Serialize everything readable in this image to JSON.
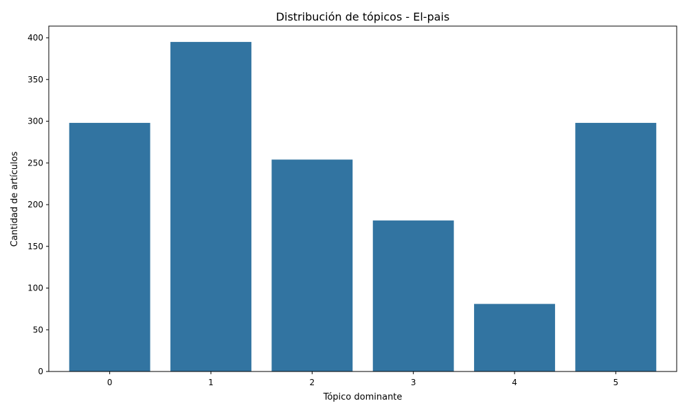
{
  "chart_data": {
    "type": "bar",
    "title": "Distribución de tópicos - El-pais",
    "xlabel": "Tópico dominante",
    "ylabel": "Cantidad de artículos",
    "categories": [
      "0",
      "1",
      "2",
      "3",
      "4",
      "5"
    ],
    "values": [
      298,
      395,
      254,
      181,
      81,
      298
    ],
    "ylim": [
      0,
      414
    ],
    "yticks": [
      0,
      50,
      100,
      150,
      200,
      250,
      300,
      350,
      400
    ],
    "bar_color": "#3274a1",
    "grid": false,
    "legend": "none"
  }
}
